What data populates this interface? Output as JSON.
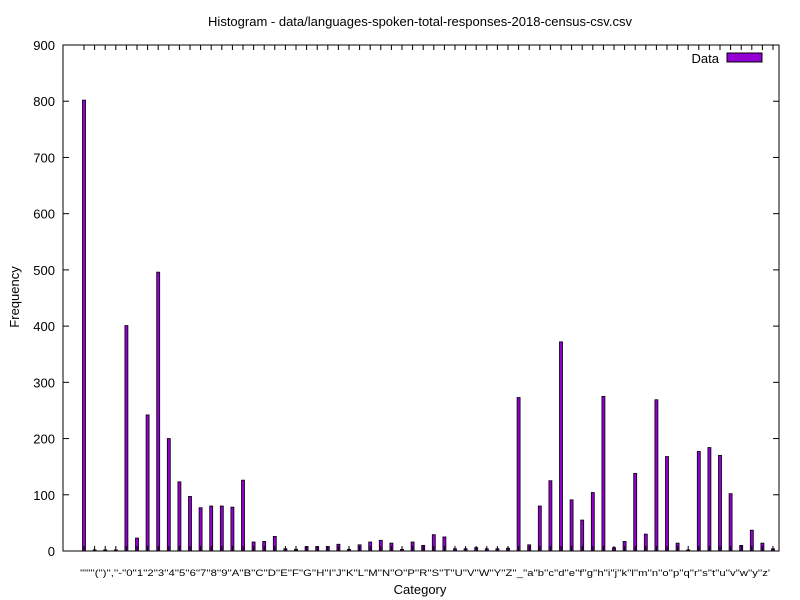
{
  "chart_data": {
    "type": "bar",
    "title": "Histogram - data/languages-spoken-total-responses-2018-census-csv.csv",
    "xlabel": "Category",
    "ylabel": "Frequency",
    "ylim": [
      0,
      900
    ],
    "yticks": [
      0,
      100,
      200,
      300,
      400,
      500,
      600,
      700,
      800,
      900
    ],
    "grid": false,
    "legend": {
      "position": "top-right",
      "entries": [
        "Data"
      ]
    },
    "bar_color": "#9400d3",
    "categories": [
      "'\"'",
      "''",
      "'('",
      "')'",
      "','",
      "'-'",
      "'0'",
      "'1'",
      "'2'",
      "'3'",
      "'4'",
      "'5'",
      "'6'",
      "'7'",
      "'8'",
      "'9'",
      "'A'",
      "'B'",
      "'C'",
      "'D'",
      "'E'",
      "'F'",
      "'G'",
      "'H'",
      "'I'",
      "'J'",
      "'K'",
      "'L'",
      "'M'",
      "'N'",
      "'O'",
      "'P'",
      "'R'",
      "'S'",
      "'T'",
      "'U'",
      "'V'",
      "'W'",
      "'Y'",
      "'Z'",
      "'_'",
      "'a'",
      "'b'",
      "'c'",
      "'d'",
      "'e'",
      "'f'",
      "'g'",
      "'h'",
      "'i'",
      "'j'",
      "'k'",
      "'l'",
      "'m'",
      "'n'",
      "'o'",
      "'p'",
      "'q'",
      "'r'",
      "'s'",
      "'t'",
      "'u'",
      "'v'",
      "'w'",
      "'y'",
      "'z'"
    ],
    "category_display": "'\"''''('')'',''-''0''1''2''3''4''5''6''7''8''9''A''B''C''D''E''F''G''H''I''J''K''L''M''N''O''P''R''S''T''U''V''W''Y''Z''_''a''b''c''d''e''f''g''h''i''j''k''l''m''n''o''p''q''r''s''t''u''v''w''y''z'",
    "series": [
      {
        "name": "Data",
        "values": [
          802,
          2,
          2,
          2,
          401,
          23,
          242,
          496,
          200,
          123,
          97,
          77,
          80,
          80,
          78,
          126,
          16,
          17,
          26,
          4,
          3,
          8,
          8,
          8,
          12,
          3,
          11,
          16,
          19,
          14,
          3,
          16,
          10,
          29,
          25,
          4,
          4,
          6,
          4,
          4,
          5,
          273,
          11,
          80,
          125,
          372,
          91,
          55,
          104,
          275,
          6,
          17,
          138,
          30,
          269,
          168,
          14,
          2,
          177,
          184,
          170,
          102,
          10,
          37,
          14,
          4
        ]
      }
    ]
  }
}
